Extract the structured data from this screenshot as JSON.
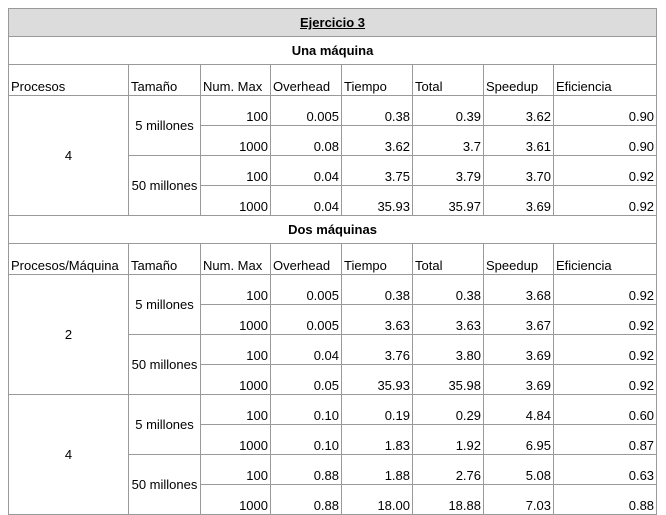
{
  "title": "Ejercicio 3",
  "sections": [
    {
      "name": "Una máquina",
      "headers": [
        "Procesos",
        "Tamaño",
        "Num. Max",
        "Overhead",
        "Tiempo",
        "Total",
        "Speedup",
        "Eficiencia"
      ],
      "groups": [
        {
          "procesos": "4",
          "sizes": [
            {
              "label": "5 millones",
              "rows": [
                [
                  "100",
                  "0.005",
                  "0.38",
                  "0.39",
                  "3.62",
                  "0.90"
                ],
                [
                  "1000",
                  "0.08",
                  "3.62",
                  "3.7",
                  "3.61",
                  "0.90"
                ]
              ]
            },
            {
              "label": "50 millones",
              "rows": [
                [
                  "100",
                  "0.04",
                  "3.75",
                  "3.79",
                  "3.70",
                  "0.92"
                ],
                [
                  "1000",
                  "0.04",
                  "35.93",
                  "35.97",
                  "3.69",
                  "0.92"
                ]
              ]
            }
          ]
        }
      ]
    },
    {
      "name": "Dos máquinas",
      "headers": [
        "Procesos/Máquina",
        "Tamaño",
        "Num. Max",
        "Overhead",
        "Tiempo",
        "Total",
        "Speedup",
        "Eficiencia"
      ],
      "groups": [
        {
          "procesos": "2",
          "sizes": [
            {
              "label": "5 millones",
              "rows": [
                [
                  "100",
                  "0.005",
                  "0.38",
                  "0.38",
                  "3.68",
                  "0.92"
                ],
                [
                  "1000",
                  "0.005",
                  "3.63",
                  "3.63",
                  "3.67",
                  "0.92"
                ]
              ]
            },
            {
              "label": "50 millones",
              "rows": [
                [
                  "100",
                  "0.04",
                  "3.76",
                  "3.80",
                  "3.69",
                  "0.92"
                ],
                [
                  "1000",
                  "0.05",
                  "35.93",
                  "35.98",
                  "3.69",
                  "0.92"
                ]
              ]
            }
          ]
        },
        {
          "procesos": "4",
          "sizes": [
            {
              "label": "5 millones",
              "rows": [
                [
                  "100",
                  "0.10",
                  "0.19",
                  "0.29",
                  "4.84",
                  "0.60"
                ],
                [
                  "1000",
                  "0.10",
                  "1.83",
                  "1.92",
                  "6.95",
                  "0.87"
                ]
              ]
            },
            {
              "label": "50 millones",
              "rows": [
                [
                  "100",
                  "0.88",
                  "1.88",
                  "2.76",
                  "5.08",
                  "0.63"
                ],
                [
                  "1000",
                  "0.88",
                  "18.00",
                  "18.88",
                  "7.03",
                  "0.88"
                ]
              ]
            }
          ]
        }
      ]
    }
  ]
}
